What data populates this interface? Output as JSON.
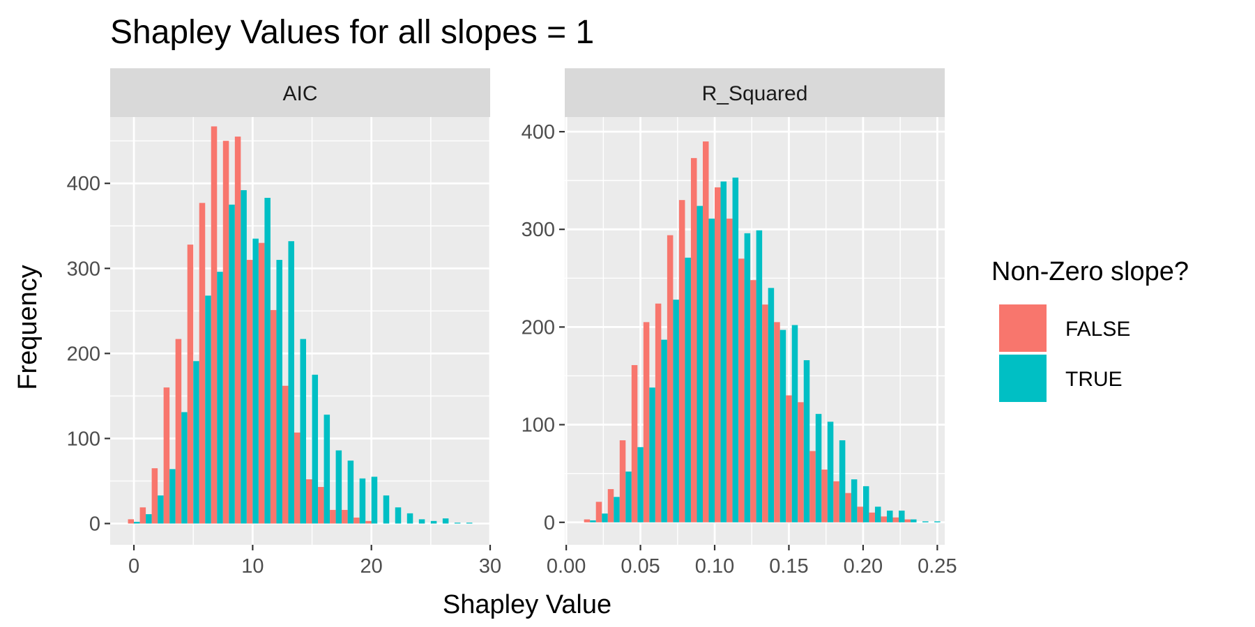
{
  "chart_data": {
    "type": "bar",
    "title": "Shapley Values for all slopes = 1",
    "xlabel": "Shapley Value",
    "ylabel": "Frequency",
    "legend": {
      "title": "Non-Zero slope?",
      "position": "right",
      "entries": [
        {
          "label": "FALSE",
          "color": "#F8766D"
        },
        {
          "label": "TRUE",
          "color": "#00BFC4"
        }
      ]
    },
    "grid": true,
    "panels": [
      {
        "strip_label": "AIC",
        "xlim": [
          -2,
          30
        ],
        "ylim": [
          -25,
          478
        ],
        "x_ticks": [
          0,
          10,
          20,
          30
        ],
        "x_tick_labels": [
          "0",
          "10",
          "20",
          "30"
        ],
        "y_ticks": [
          0,
          100,
          200,
          300,
          400
        ],
        "y_tick_labels": [
          "0",
          "100",
          "200",
          "300",
          "400"
        ],
        "bin_width": 1,
        "bin_centers": [
          0,
          1,
          2,
          3,
          4,
          5,
          6,
          7,
          8,
          9,
          10,
          11,
          12,
          13,
          14,
          15,
          16,
          17,
          18,
          19,
          20,
          21,
          22,
          23,
          24,
          25,
          26,
          27,
          28
        ],
        "series": [
          {
            "name": "FALSE",
            "values": [
              5,
              19,
              65,
              160,
              217,
              328,
              377,
              467,
              450,
              455,
              310,
              330,
              251,
              162,
              107,
              52,
              43,
              16,
              16,
              7,
              3,
              0,
              0,
              0,
              0,
              0,
              0,
              0,
              0
            ]
          },
          {
            "name": "TRUE",
            "values": [
              2,
              11,
              33,
              64,
              131,
              191,
              268,
              296,
              375,
              392,
              335,
              383,
              310,
              332,
              217,
              175,
              128,
              86,
              74,
              53,
              55,
              33,
              19,
              12,
              5,
              3,
              6,
              1,
              1
            ]
          }
        ]
      },
      {
        "strip_label": "R_Squared",
        "xlim": [
          -0.001,
          0.255
        ],
        "ylim": [
          -23,
          415
        ],
        "x_ticks": [
          0.0,
          0.05,
          0.1,
          0.15,
          0.2,
          0.25
        ],
        "x_tick_labels": [
          "0.00",
          "0.05",
          "0.10",
          "0.15",
          "0.20",
          "0.25"
        ],
        "y_ticks": [
          0,
          100,
          200,
          300,
          400
        ],
        "y_tick_labels": [
          "0",
          "100",
          "200",
          "300",
          "400"
        ],
        "bin_width": 0.008,
        "bin_centers": [
          0.016,
          0.024,
          0.032,
          0.04,
          0.048,
          0.056,
          0.064,
          0.072,
          0.08,
          0.088,
          0.096,
          0.104,
          0.112,
          0.12,
          0.128,
          0.136,
          0.144,
          0.152,
          0.16,
          0.168,
          0.176,
          0.184,
          0.192,
          0.2,
          0.208,
          0.216,
          0.224,
          0.232,
          0.24,
          0.248
        ],
        "series": [
          {
            "name": "FALSE",
            "values": [
              3,
              21,
              34,
              84,
              161,
              205,
              224,
              294,
              330,
              373,
              390,
              343,
              311,
              270,
              248,
              223,
              205,
              130,
              123,
              73,
              54,
              42,
              30,
              16,
              10,
              6,
              5,
              3,
              0,
              0
            ]
          },
          {
            "name": "TRUE",
            "values": [
              2,
              9,
              26,
              52,
              77,
              138,
              187,
              228,
              271,
              324,
              311,
              349,
              353,
              296,
              299,
              240,
              197,
              202,
              166,
              111,
              103,
              84,
              44,
              37,
              16,
              12,
              12,
              3,
              1,
              1
            ]
          }
        ]
      }
    ]
  }
}
